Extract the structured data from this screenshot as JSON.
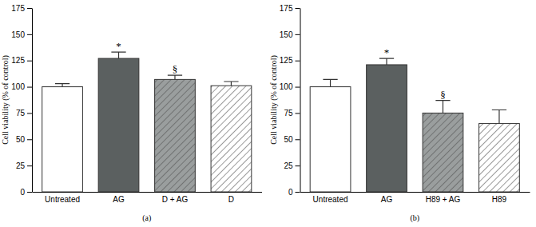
{
  "chart_data": [
    {
      "type": "bar",
      "title": "(a)",
      "y_label": "Cell viability (% of control)",
      "categories": [
        "Untreated",
        "AG",
        "D + AG",
        "D"
      ],
      "values": [
        100,
        127,
        107,
        101
      ],
      "errors": [
        3,
        6,
        4,
        4
      ],
      "colors": [
        "#ffffff",
        "#5b6060",
        "#9a9e9e",
        "#ffffff"
      ],
      "ylim": [
        0,
        175
      ],
      "yticks": [
        0,
        25,
        50,
        75,
        100,
        125,
        150,
        175
      ],
      "annotations": [
        {
          "text": "*",
          "category": "AG"
        },
        {
          "text": "§",
          "category": "D + AG"
        }
      ]
    },
    {
      "type": "bar",
      "title": "(b)",
      "y_label": "Cell viability (% of control)",
      "categories": [
        "Untreated",
        "AG",
        "H89 + AG",
        "H89"
      ],
      "values": [
        100,
        121,
        75,
        65
      ],
      "errors": [
        7,
        6,
        12,
        13
      ],
      "colors": [
        "#ffffff",
        "#5b6060",
        "#9a9e9e",
        "#ffffff"
      ],
      "ylim": [
        0,
        175
      ],
      "yticks": [
        0,
        25,
        50,
        75,
        100,
        125,
        150,
        175
      ],
      "annotations": [
        {
          "text": "*",
          "category": "AG"
        },
        {
          "text": "§",
          "category": "H89 + AG"
        }
      ]
    }
  ]
}
